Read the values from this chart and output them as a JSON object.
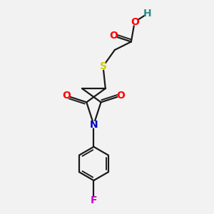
{
  "bg_color": "#f2f2f2",
  "bond_color": "#1a1a1a",
  "bond_width": 1.6,
  "atom_colors": {
    "O": "#ff0000",
    "N": "#0000cc",
    "S": "#cccc00",
    "F": "#cc00cc",
    "H": "#2e8b8b",
    "C": "#1a1a1a"
  },
  "figsize": [
    3.0,
    3.0
  ],
  "dpi": 100
}
